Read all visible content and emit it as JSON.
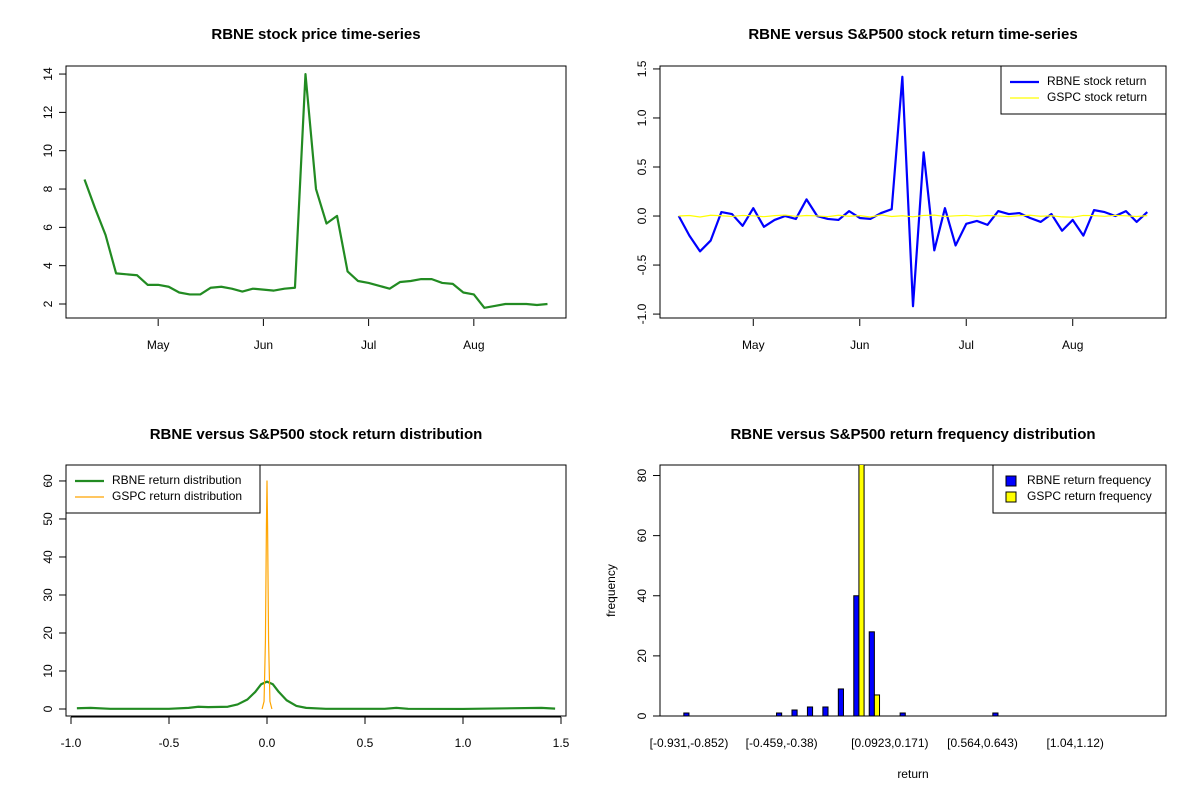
{
  "chart_data": [
    {
      "type": "line",
      "title": "RBNE stock price time-series",
      "categories": [
        null,
        null,
        null,
        null,
        null,
        null,
        null,
        "May",
        null,
        null,
        null,
        null,
        null,
        null,
        null,
        null,
        null,
        "Jun",
        null,
        null,
        null,
        null,
        null,
        null,
        null,
        null,
        null,
        "Jul",
        null,
        null,
        null,
        null,
        null,
        null,
        null,
        null,
        null,
        "Aug",
        null,
        null,
        null,
        null,
        null,
        null,
        null
      ],
      "values": [
        8.5,
        7.0,
        5.6,
        3.6,
        3.55,
        3.5,
        3.0,
        3.0,
        2.9,
        2.6,
        2.5,
        2.5,
        2.85,
        2.9,
        2.8,
        2.65,
        2.8,
        2.75,
        2.7,
        2.8,
        2.85,
        14,
        8.0,
        6.2,
        6.6,
        3.7,
        3.2,
        3.1,
        2.95,
        2.8,
        3.15,
        3.2,
        3.3,
        3.3,
        3.1,
        3.05,
        2.6,
        2.5,
        1.8,
        1.9,
        2.0,
        2.0,
        2.0,
        1.95,
        2.0
      ],
      "color": "#228b22",
      "ylim": [
        1.27,
        14.42
      ],
      "yticks": [
        2,
        4,
        6,
        8,
        10,
        12,
        14
      ]
    },
    {
      "type": "line",
      "title": "RBNE versus S&P500 stock return time-series",
      "categories": [
        null,
        null,
        null,
        null,
        null,
        null,
        null,
        "May",
        null,
        null,
        null,
        null,
        null,
        null,
        null,
        null,
        null,
        "Jun",
        null,
        null,
        null,
        null,
        null,
        null,
        null,
        null,
        null,
        "Jul",
        null,
        null,
        null,
        null,
        null,
        null,
        null,
        null,
        null,
        "Aug",
        null,
        null,
        null,
        null,
        null,
        null,
        null
      ],
      "series": [
        {
          "name": "RBNE stock return",
          "color": "#0000ff",
          "values": [
            0,
            -0.2,
            -0.36,
            -0.25,
            0.04,
            0.02,
            -0.1,
            0.08,
            -0.11,
            -0.04,
            0.0,
            -0.03,
            0.17,
            0.0,
            -0.03,
            -0.04,
            0.05,
            -0.02,
            -0.03,
            0.03,
            0.07,
            1.42,
            -0.92,
            0.65,
            -0.35,
            0.08,
            -0.3,
            -0.08,
            -0.05,
            -0.09,
            0.05,
            0.02,
            0.03,
            -0.02,
            -0.06,
            0.02,
            -0.15,
            -0.04,
            -0.2,
            0.06,
            0.04,
            0.0,
            0.05,
            -0.06,
            0.04
          ]
        },
        {
          "name": "GSPC stock return",
          "color": "#ffff00",
          "values": [
            0,
            0.005,
            -0.01,
            0.008,
            0.003,
            -0.004,
            0.006,
            0.002,
            -0.007,
            0.004,
            0.01,
            -0.003,
            0.005,
            0.001,
            -0.006,
            0.008,
            -0.002,
            0.004,
            -0.01,
            0.012,
            -0.005,
            0.003,
            -0.008,
            0.006,
            0.009,
            -0.004,
            0.002,
            0.007,
            -0.003,
            0.005,
            0.001,
            -0.006,
            0.004,
            0.008,
            -0.002,
            0.003,
            -0.009,
            -0.012,
            0.006,
            0.004,
            -0.003,
            0.007,
            0.002,
            -0.005,
            0.004
          ]
        }
      ],
      "ylim": [
        -1.04,
        1.53
      ],
      "yticks": [
        {
          "value": -1,
          "label": "-1.0"
        },
        -0.5,
        {
          "value": 0,
          "label": "0.0"
        },
        0.5,
        {
          "value": 1,
          "label": "1.0"
        },
        1.5
      ],
      "legend": "topright"
    },
    {
      "type": "line",
      "title": "RBNE versus S&P500 stock return distribution",
      "series": [
        {
          "name": "RBNE return distribution",
          "color": "#228b22",
          "x": [
            -0.97,
            -0.9,
            -0.8,
            -0.5,
            -0.4,
            -0.35,
            -0.3,
            -0.2,
            -0.15,
            -0.1,
            -0.06,
            -0.03,
            0,
            0.03,
            0.06,
            0.1,
            0.15,
            0.2,
            0.3,
            0.6,
            0.66,
            0.72,
            1.0,
            1.4,
            1.47
          ],
          "values": [
            0.2,
            0.3,
            0.05,
            0.05,
            0.3,
            0.6,
            0.5,
            0.6,
            1.2,
            2.5,
            4.5,
            6.5,
            7.2,
            6.5,
            4.5,
            2.3,
            0.8,
            0.3,
            0.05,
            0.05,
            0.3,
            0.05,
            0.02,
            0.3,
            0.1
          ]
        },
        {
          "name": "GSPC return distribution",
          "color": "#ffa500",
          "x": [
            -0.025,
            -0.015,
            -0.008,
            -0.003,
            0,
            0.003,
            0.008,
            0.015,
            0.025
          ],
          "values": [
            0,
            2,
            18,
            48,
            60,
            48,
            18,
            2,
            0
          ]
        }
      ],
      "xlim": [
        -1.0255,
        1.5255
      ],
      "xticks": [
        {
          "value": -1,
          "label": "-1.0"
        },
        -0.5,
        {
          "value": 0,
          "label": "0.0"
        },
        0.5,
        {
          "value": 1,
          "label": "1.0"
        },
        1.5
      ],
      "ylim": [
        -1.84,
        64.2
      ],
      "yticks": [
        0,
        10,
        20,
        30,
        40,
        50,
        60
      ],
      "legend": "topleft"
    },
    {
      "type": "bar",
      "title": "RBNE versus S&P500 return frequency distribution",
      "categories": [
        "[-0.931,-0.852)",
        null,
        null,
        null,
        null,
        null,
        "[-0.459,-0.38)",
        null,
        null,
        null,
        null,
        null,
        null,
        "[0.0923,0.171)",
        null,
        null,
        null,
        null,
        null,
        "[0.564,0.643)",
        null,
        null,
        null,
        null,
        null,
        "[1.04,1.12)",
        null,
        null,
        null,
        null
      ],
      "series": [
        {
          "name": "RBNE return frequency",
          "color": "#0000ff",
          "values": [
            1,
            0,
            0,
            0,
            0,
            0,
            1,
            2,
            3,
            3,
            9,
            40,
            28,
            0,
            1,
            0,
            0,
            0,
            0,
            0,
            1,
            0,
            0,
            0,
            0,
            0,
            0,
            0,
            0,
            0
          ]
        },
        {
          "name": "GSPC return frequency",
          "color": "#ffff00",
          "values": [
            0,
            0,
            0,
            0,
            0,
            0,
            0,
            0,
            0,
            0,
            0,
            84,
            7,
            0,
            0,
            0,
            0,
            0,
            0,
            0,
            0,
            0,
            0,
            0,
            0,
            0,
            0,
            0,
            0,
            0
          ]
        }
      ],
      "xlabel": "return",
      "ylabel": "frequency",
      "ylim": [
        0,
        83.5
      ],
      "yticks": [
        0,
        20,
        40,
        60,
        80
      ],
      "legend": "topright"
    }
  ]
}
